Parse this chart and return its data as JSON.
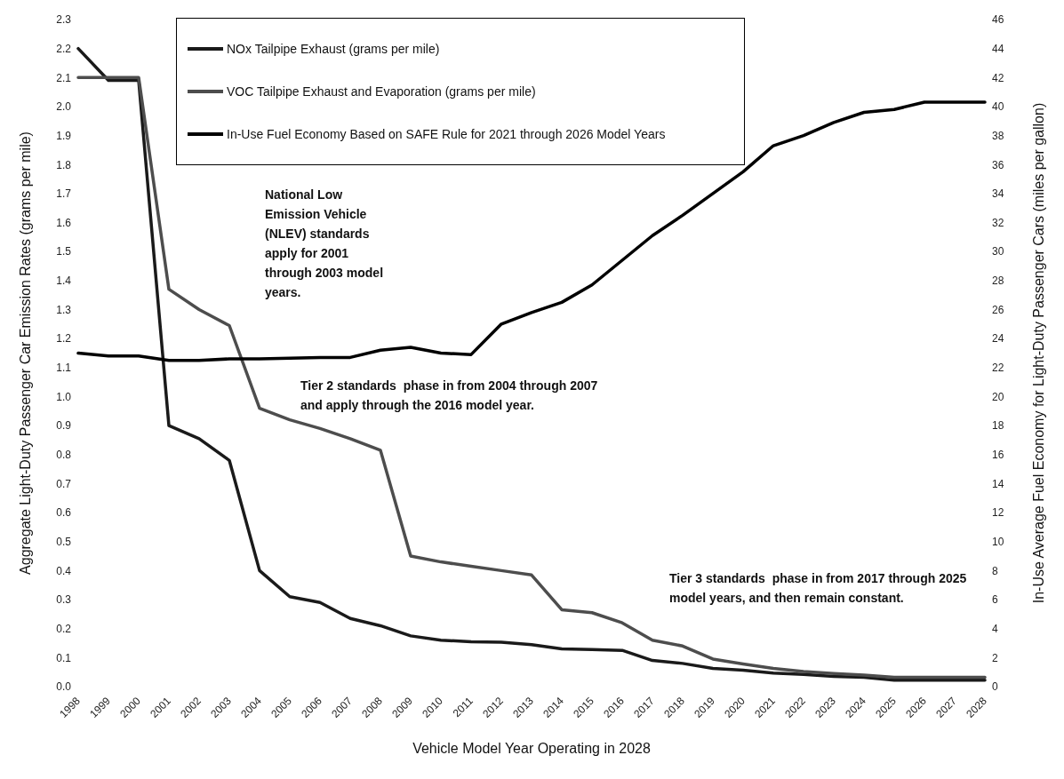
{
  "chart_data": {
    "type": "line",
    "xlabel": "Vehicle Model Year Operating in 2028",
    "ylabel": "Aggregate Light-Duty Passenger Car Emission Rates (grams per mile)",
    "y2label": "In-Use Average Fuel Economy for Light-Duty Passenger Cars (miles per gallon)",
    "categories": [
      "1998",
      "1999",
      "2000",
      "2001",
      "2002",
      "2003",
      "2004",
      "2005",
      "2006",
      "2007",
      "2008",
      "2009",
      "2010",
      "2011",
      "2012",
      "2013",
      "2014",
      "2015",
      "2016",
      "2017",
      "2018",
      "2019",
      "2020",
      "2021",
      "2022",
      "2023",
      "2024",
      "2025",
      "2026",
      "2027",
      "2028"
    ],
    "series": [
      {
        "name": "NOx Tailpipe Exhaust (grams per mile)",
        "color": "#1a1a1a",
        "values": [
          2.2,
          2.09,
          2.09,
          0.9,
          0.855,
          0.78,
          0.4,
          0.31,
          0.29,
          0.235,
          0.21,
          0.175,
          0.16,
          0.155,
          0.153,
          0.145,
          0.13,
          0.128,
          0.125,
          0.09,
          0.08,
          0.063,
          0.057,
          0.047,
          0.042,
          0.035,
          0.032,
          0.022,
          0.022,
          0.022,
          0.022
        ]
      },
      {
        "name": "VOC Tailpipe Exhaust and Evaporation (grams per mile)",
        "color": "#4d4d4d",
        "values": [
          2.1,
          2.1,
          2.1,
          1.37,
          1.3,
          1.245,
          0.96,
          0.92,
          0.89,
          0.855,
          0.815,
          0.45,
          0.43,
          0.415,
          0.4,
          0.385,
          0.265,
          0.255,
          0.22,
          0.16,
          0.14,
          0.095,
          0.078,
          0.063,
          0.052,
          0.045,
          0.04,
          0.032,
          0.032,
          0.032,
          0.032
        ]
      },
      {
        "name": "In-Use Fuel Economy Based on SAFE Rule for 2021 through 2026 Model Years",
        "color": "#000000",
        "axis": "y2",
        "values": [
          23.0,
          22.8,
          22.8,
          22.5,
          22.5,
          22.6,
          22.6,
          22.65,
          22.7,
          22.7,
          23.2,
          23.4,
          23.0,
          22.9,
          25.0,
          25.8,
          26.5,
          27.7,
          29.4,
          31.1,
          32.5,
          34.0,
          35.5,
          37.3,
          38.0,
          38.9,
          39.6,
          39.8,
          40.3,
          40.3,
          40.3
        ]
      }
    ],
    "ylim": [
      0,
      2.3
    ],
    "yticks": [
      {
        "value": 0,
        "label": "0.0"
      },
      0.1,
      0.2,
      0.3,
      0.4,
      0.5,
      0.6,
      0.7,
      0.8,
      0.9,
      {
        "value": 1,
        "label": "1.0"
      },
      1.1,
      1.2,
      1.3,
      1.4,
      1.5,
      1.6,
      1.7,
      1.8,
      1.9,
      {
        "value": 2,
        "label": "2.0"
      },
      2.1,
      2.2,
      2.3
    ],
    "y2lim": [
      0,
      46
    ],
    "y2ticks": [
      0,
      2,
      4,
      6,
      8,
      10,
      12,
      14,
      16,
      18,
      20,
      22,
      24,
      26,
      28,
      30,
      32,
      34,
      36,
      38,
      40,
      42,
      44,
      46
    ],
    "annotations": [
      "National Low Emission Vehicle (NLEV) standards apply for 2001 through 2003 model years.",
      "Tier 2 standards  phase in from 2004 through 2007 and apply through the 2016 model year.",
      "Tier 3 standards  phase in from 2017 through 2025 model years, and then remain constant."
    ],
    "grid": false,
    "legend": "top",
    "marker": "none",
    "line_style": "solid"
  }
}
